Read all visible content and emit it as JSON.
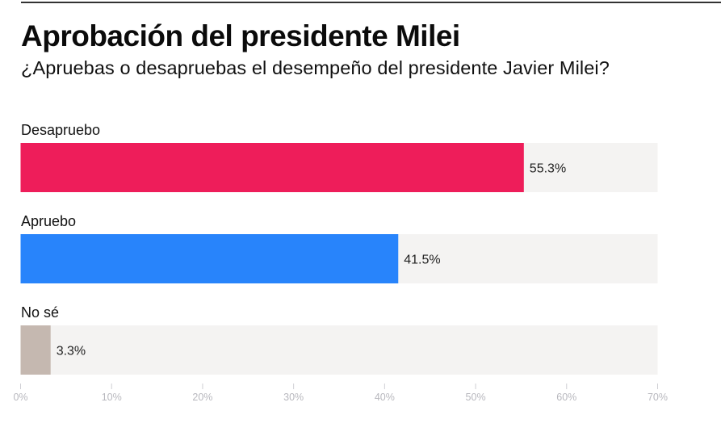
{
  "header": {
    "title": "Aprobación del presidente Milei",
    "subtitle": "¿Apruebas o desapruebas el desempeño del presidente Javier Milei?"
  },
  "chart_data": {
    "type": "bar",
    "orientation": "horizontal",
    "title": "Aprobación del presidente Milei",
    "subtitle": "¿Apruebas o desapruebas el desempeño del presidente Javier Milei?",
    "categories": [
      "Desapruebo",
      "Apruebo",
      "No sé"
    ],
    "values": [
      55.3,
      41.5,
      3.3
    ],
    "value_labels": [
      "55.3%",
      "41.5%",
      "3.3%"
    ],
    "colors": [
      "#ee1d5a",
      "#2884fb",
      "#c5b8b0"
    ],
    "track_color": "#f4f3f2",
    "xlim": [
      0,
      70
    ],
    "xticks": [
      0,
      10,
      20,
      30,
      40,
      50,
      60,
      70
    ],
    "xtick_labels": [
      "0%",
      "10%",
      "20%",
      "30%",
      "40%",
      "50%",
      "60%",
      "70%"
    ],
    "xlabel": "",
    "ylabel": "",
    "grid": false,
    "legend": "none"
  }
}
